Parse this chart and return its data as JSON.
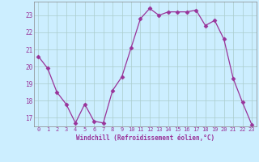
{
  "x": [
    0,
    1,
    2,
    3,
    4,
    5,
    6,
    7,
    8,
    9,
    10,
    11,
    12,
    13,
    14,
    15,
    16,
    17,
    18,
    19,
    20,
    21,
    22,
    23
  ],
  "y": [
    20.6,
    19.9,
    18.5,
    17.8,
    16.7,
    17.8,
    16.8,
    16.7,
    18.6,
    19.4,
    21.1,
    22.8,
    23.4,
    23.0,
    23.2,
    23.2,
    23.2,
    23.3,
    22.4,
    22.7,
    21.6,
    19.3,
    17.9,
    16.6
  ],
  "line_color": "#993399",
  "marker": "D",
  "marker_size": 2.5,
  "bg_color": "#cceeff",
  "grid_color": "#aacccc",
  "xlabel": "Windchill (Refroidissement éolien,°C)",
  "xlabel_color": "#993399",
  "tick_color": "#993399",
  "ylim": [
    16.5,
    23.8
  ],
  "yticks": [
    17,
    18,
    19,
    20,
    21,
    22,
    23
  ],
  "xlim": [
    -0.5,
    23.5
  ],
  "xticks": [
    0,
    1,
    2,
    3,
    4,
    5,
    6,
    7,
    8,
    9,
    10,
    11,
    12,
    13,
    14,
    15,
    16,
    17,
    18,
    19,
    20,
    21,
    22,
    23
  ]
}
